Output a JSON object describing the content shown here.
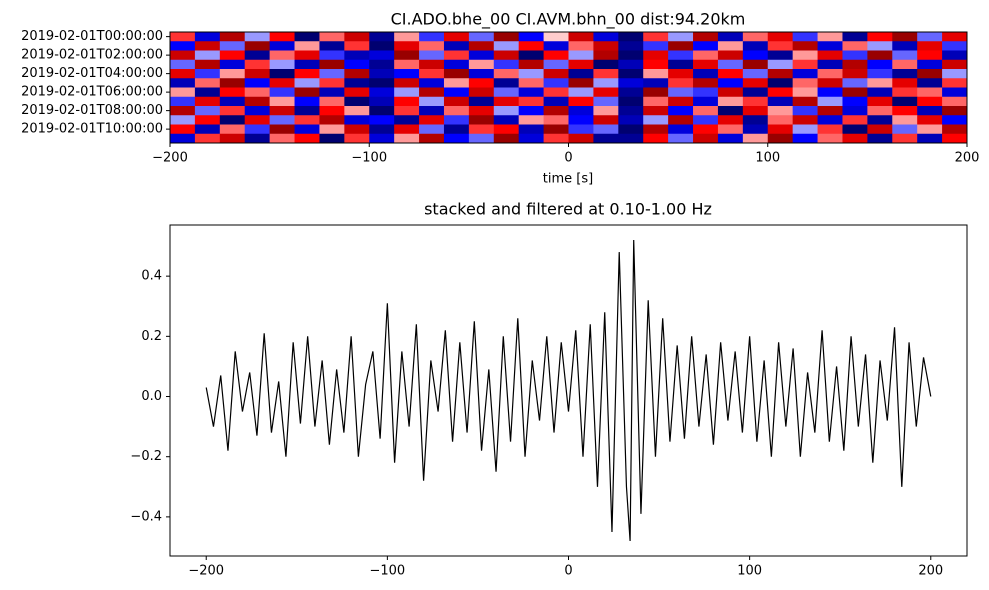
{
  "chart_data": [
    {
      "type": "heatmap",
      "title": "CI.ADO.bhe_00 CI.AVM.bhn_00  dist:94.20km",
      "x_label": "time [s]",
      "xlim": [
        -200,
        200
      ],
      "xticks": [
        {
          "value": -200,
          "label": "−200"
        },
        {
          "value": -100,
          "label": "−100"
        },
        0,
        100,
        200
      ],
      "rows": [
        "2019-02-01T00:00:00",
        null,
        "2019-02-01T02:00:00",
        null,
        "2019-02-01T04:00:00",
        null,
        "2019-02-01T06:00:00",
        null,
        "2019-02-01T08:00:00",
        null,
        "2019-02-01T10:00:00",
        null
      ],
      "colormap": "seismic",
      "values": [
        [
          0.4,
          -0.6,
          0.8,
          -0.2,
          0.5,
          -0.9,
          0.3,
          0.7,
          -0.8,
          0.2,
          -0.4,
          0.6,
          -0.3,
          0.9,
          -0.5,
          0.1,
          0.7,
          -0.6,
          -0.9,
          0.4,
          -0.2,
          0.8,
          -0.7,
          0.3,
          0.6,
          -0.4,
          0.2,
          -0.8,
          0.5,
          0.9,
          -0.3,
          0.6
        ],
        [
          -0.5,
          0.7,
          -0.3,
          0.9,
          -0.6,
          0.2,
          -0.8,
          0.4,
          -0.9,
          0.6,
          0.3,
          -0.7,
          0.8,
          -0.2,
          0.5,
          -0.6,
          0.3,
          0.7,
          -0.8,
          -0.4,
          0.9,
          -0.5,
          0.2,
          -0.7,
          0.4,
          0.8,
          -0.6,
          0.3,
          -0.2,
          -0.7,
          0.6,
          -0.4
        ],
        [
          0.7,
          -0.2,
          0.5,
          -0.8,
          0.3,
          0.6,
          -0.4,
          -0.7,
          -0.6,
          0.9,
          -0.3,
          0.4,
          -0.6,
          0.7,
          -0.9,
          0.5,
          -0.2,
          0.8,
          -0.9,
          0.6,
          -0.4,
          0.3,
          0.7,
          -0.5,
          -0.8,
          0.2,
          0.6,
          -0.4,
          0.9,
          -0.3,
          0.5,
          -0.7
        ],
        [
          -0.3,
          0.8,
          -0.6,
          0.4,
          -0.2,
          -0.7,
          0.9,
          -0.5,
          -0.8,
          0.3,
          0.7,
          -0.6,
          0.2,
          -0.4,
          0.8,
          -0.3,
          0.6,
          -0.9,
          -0.7,
          0.5,
          -0.8,
          0.6,
          -0.3,
          0.9,
          -0.2,
          0.4,
          -0.7,
          0.8,
          -0.5,
          0.3,
          -0.6,
          0.7
        ],
        [
          0.6,
          -0.4,
          0.2,
          0.7,
          -0.9,
          0.5,
          -0.3,
          0.8,
          -0.7,
          -0.5,
          0.4,
          0.9,
          -0.6,
          0.3,
          -0.2,
          0.7,
          -0.8,
          0.4,
          -0.9,
          0.2,
          0.6,
          -0.7,
          0.5,
          -0.3,
          0.8,
          -0.6,
          0.3,
          0.7,
          -0.4,
          -0.8,
          0.9,
          -0.2
        ],
        [
          -0.7,
          0.3,
          0.9,
          -0.5,
          0.6,
          -0.2,
          0.4,
          -0.8,
          -0.9,
          0.7,
          -0.6,
          0.2,
          0.5,
          -0.8,
          0.3,
          -0.4,
          0.9,
          -0.2,
          -0.6,
          -0.7,
          0.4,
          0.8,
          -0.5,
          0.6,
          -0.9,
          0.3,
          0.7,
          -0.3,
          0.2,
          0.6,
          -0.8,
          0.4
        ],
        [
          0.2,
          -0.8,
          0.5,
          0.3,
          -0.4,
          0.9,
          -0.7,
          0.6,
          -0.6,
          -0.2,
          0.8,
          -0.5,
          0.7,
          -0.3,
          -0.6,
          0.4,
          -0.2,
          0.6,
          -0.8,
          0.9,
          -0.3,
          -0.4,
          0.7,
          -0.8,
          0.5,
          0.2,
          -0.5,
          0.9,
          -0.7,
          0.4,
          0.3,
          -0.6
        ],
        [
          -0.4,
          0.6,
          -0.7,
          0.8,
          0.2,
          -0.5,
          0.3,
          -0.9,
          -0.7,
          0.5,
          -0.2,
          0.7,
          -0.8,
          0.6,
          0.4,
          -0.7,
          0.5,
          -0.3,
          -0.9,
          0.3,
          0.7,
          -0.6,
          0.2,
          0.4,
          -0.7,
          0.8,
          -0.2,
          -0.5,
          0.6,
          -0.9,
          0.5,
          0.3
        ],
        [
          0.8,
          -0.3,
          0.4,
          -0.6,
          0.7,
          -0.8,
          0.5,
          0.2,
          -0.9,
          0.4,
          -0.7,
          0.3,
          0.6,
          -0.2,
          -0.5,
          0.8,
          -0.6,
          0.2,
          -0.8,
          0.7,
          -0.5,
          0.3,
          -0.9,
          0.6,
          0.2,
          -0.4,
          0.8,
          -0.6,
          0.3,
          0.5,
          -0.7,
          0.9
        ],
        [
          -0.2,
          0.5,
          -0.9,
          0.6,
          -0.3,
          0.4,
          0.8,
          -0.6,
          -0.5,
          -0.8,
          0.6,
          -0.4,
          0.9,
          -0.7,
          0.2,
          0.3,
          -0.5,
          0.7,
          -0.7,
          -0.2,
          0.8,
          -0.4,
          0.6,
          -0.8,
          0.3,
          0.7,
          -0.6,
          0.4,
          -0.8,
          0.2,
          0.6,
          -0.5
        ],
        [
          0.5,
          -0.7,
          0.3,
          -0.4,
          0.9,
          -0.6,
          0.2,
          0.7,
          -0.8,
          0.6,
          -0.3,
          -0.8,
          0.4,
          0.5,
          -0.7,
          0.9,
          -0.4,
          -0.3,
          -0.9,
          0.8,
          -0.6,
          0.5,
          0.3,
          -0.7,
          0.6,
          -0.2,
          0.4,
          -0.9,
          0.7,
          -0.3,
          0.2,
          0.8
        ],
        [
          -0.6,
          0.4,
          0.7,
          -0.8,
          0.3,
          0.5,
          -0.9,
          0.4,
          -0.6,
          0.2,
          0.8,
          -0.5,
          -0.3,
          0.9,
          -0.6,
          0.4,
          0.7,
          -0.8,
          -0.8,
          0.5,
          -0.3,
          0.7,
          -0.6,
          0.2,
          0.9,
          -0.5,
          0.3,
          0.6,
          -0.8,
          0.4,
          -0.7,
          0.5
        ]
      ]
    },
    {
      "type": "line",
      "title": "stacked and filtered at 0.10-1.00 Hz",
      "color": "#000000",
      "xlim": [
        -220,
        220
      ],
      "xticks": [
        {
          "value": -200,
          "label": "−200"
        },
        {
          "value": -100,
          "label": "−100"
        },
        0,
        100,
        200
      ],
      "ylim": [
        -0.53,
        0.57
      ],
      "yticks": [
        {
          "value": -0.4,
          "label": "−0.4"
        },
        {
          "value": -0.2,
          "label": "−0.2"
        },
        {
          "value": 0,
          "label": "0.0"
        },
        0.2,
        0.4
      ],
      "x": [
        -200,
        -196,
        -192,
        -188,
        -184,
        -180,
        -176,
        -172,
        -168,
        -164,
        -160,
        -156,
        -152,
        -148,
        -144,
        -140,
        -136,
        -132,
        -128,
        -124,
        -120,
        -116,
        -112,
        -108,
        -104,
        -100,
        -96,
        -92,
        -88,
        -84,
        -80,
        -76,
        -72,
        -68,
        -64,
        -60,
        -56,
        -52,
        -48,
        -44,
        -40,
        -36,
        -32,
        -28,
        -24,
        -20,
        -16,
        -12,
        -8,
        -4,
        0,
        4,
        8,
        12,
        16,
        20,
        24,
        28,
        32,
        34,
        36,
        40,
        44,
        48,
        52,
        56,
        60,
        64,
        68,
        72,
        76,
        80,
        84,
        88,
        92,
        96,
        100,
        104,
        108,
        112,
        116,
        120,
        124,
        128,
        132,
        136,
        140,
        144,
        148,
        152,
        156,
        160,
        164,
        168,
        172,
        176,
        180,
        184,
        188,
        192,
        196,
        200
      ],
      "values": [
        0.03,
        -0.1,
        0.07,
        -0.18,
        0.15,
        -0.05,
        0.08,
        -0.13,
        0.21,
        -0.12,
        0.05,
        -0.2,
        0.18,
        -0.09,
        0.2,
        -0.1,
        0.12,
        -0.16,
        0.09,
        -0.12,
        0.2,
        -0.2,
        0.04,
        0.15,
        -0.14,
        0.31,
        -0.22,
        0.15,
        -0.1,
        0.24,
        -0.28,
        0.12,
        -0.05,
        0.22,
        -0.15,
        0.18,
        -0.12,
        0.25,
        -0.18,
        0.09,
        -0.25,
        0.2,
        -0.15,
        0.26,
        -0.2,
        0.12,
        -0.08,
        0.2,
        -0.12,
        0.18,
        -0.05,
        0.22,
        -0.2,
        0.24,
        -0.3,
        0.28,
        -0.45,
        0.48,
        -0.3,
        -0.48,
        0.52,
        -0.39,
        0.32,
        -0.2,
        0.26,
        -0.15,
        0.17,
        -0.14,
        0.2,
        -0.1,
        0.14,
        -0.16,
        0.18,
        -0.08,
        0.15,
        -0.12,
        0.2,
        -0.15,
        0.12,
        -0.2,
        0.18,
        -0.1,
        0.16,
        -0.2,
        0.08,
        -0.12,
        0.22,
        -0.15,
        0.1,
        -0.18,
        0.2,
        -0.1,
        0.14,
        -0.22,
        0.12,
        -0.08,
        0.23,
        -0.3,
        0.18,
        -0.1,
        0.13,
        0.0
      ]
    }
  ]
}
